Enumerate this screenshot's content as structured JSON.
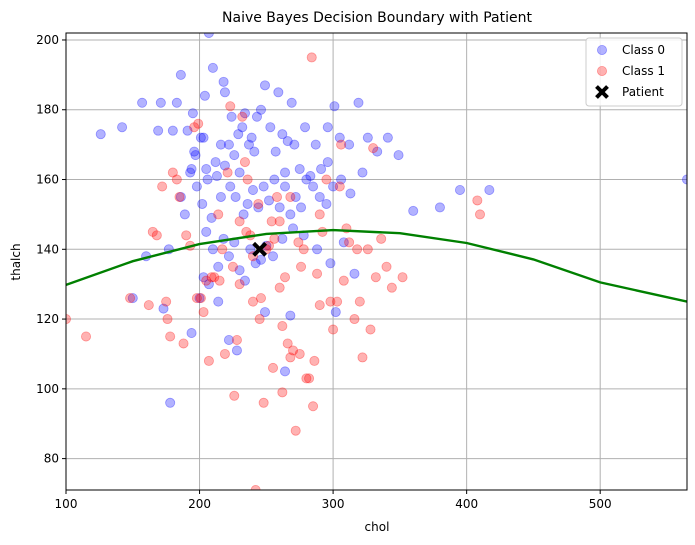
{
  "chart_data": {
    "type": "scatter",
    "title": "Naive Bayes Decision Boundary with Patient",
    "xlabel": "chol",
    "ylabel": "thalch",
    "xlim": [
      100,
      565
    ],
    "ylim": [
      71,
      202
    ],
    "xticks": [
      100,
      200,
      300,
      400,
      500
    ],
    "yticks": [
      80,
      100,
      120,
      140,
      160,
      180,
      200
    ],
    "grid": true,
    "legend_position": "top-right",
    "colors": {
      "class0": "#0000ff",
      "class1": "#ff0000",
      "patient": "#000000",
      "boundary": "#008000"
    },
    "series": [
      {
        "name": "Class 0",
        "points": [
          [
            126,
            173
          ],
          [
            142,
            175
          ],
          [
            157,
            182
          ],
          [
            169,
            174
          ],
          [
            171,
            182
          ],
          [
            180,
            174
          ],
          [
            183,
            182
          ],
          [
            186,
            190
          ],
          [
            191,
            174
          ],
          [
            193,
            162
          ],
          [
            195,
            179
          ],
          [
            196,
            168
          ],
          [
            197,
            167
          ],
          [
            201,
            172
          ],
          [
            203,
            172
          ],
          [
            204,
            184
          ],
          [
            205,
            163
          ],
          [
            210,
            192
          ],
          [
            212,
            165
          ],
          [
            216,
            170
          ],
          [
            218,
            188
          ],
          [
            219,
            185
          ],
          [
            222,
            170
          ],
          [
            224,
            178
          ],
          [
            226,
            167
          ],
          [
            229,
            173
          ],
          [
            232,
            175
          ],
          [
            234,
            179
          ],
          [
            237,
            170
          ],
          [
            239,
            172
          ],
          [
            241,
            168
          ],
          [
            243,
            178
          ],
          [
            246,
            180
          ],
          [
            249,
            187
          ],
          [
            253,
            175
          ],
          [
            257,
            168
          ],
          [
            259,
            185
          ],
          [
            262,
            173
          ],
          [
            264,
            162
          ],
          [
            266,
            171
          ],
          [
            269,
            182
          ],
          [
            271,
            170
          ],
          [
            275,
            163
          ],
          [
            279,
            175
          ],
          [
            283,
            161
          ],
          [
            287,
            170
          ],
          [
            291,
            163
          ],
          [
            296,
            175
          ],
          [
            301,
            181
          ],
          [
            305,
            172
          ],
          [
            312,
            170
          ],
          [
            319,
            182
          ],
          [
            326,
            172
          ],
          [
            333,
            168
          ],
          [
            341,
            172
          ],
          [
            349,
            167
          ],
          [
            296,
            165
          ],
          [
            306,
            160
          ],
          [
            313,
            156
          ],
          [
            322,
            162
          ],
          [
            186,
            155
          ],
          [
            189,
            150
          ],
          [
            194,
            163
          ],
          [
            198,
            158
          ],
          [
            202,
            153
          ],
          [
            206,
            160
          ],
          [
            209,
            149
          ],
          [
            213,
            161
          ],
          [
            216,
            155
          ],
          [
            219,
            164
          ],
          [
            223,
            158
          ],
          [
            227,
            155
          ],
          [
            230,
            162
          ],
          [
            233,
            150
          ],
          [
            236,
            153
          ],
          [
            240,
            157
          ],
          [
            244,
            152
          ],
          [
            248,
            158
          ],
          [
            252,
            154
          ],
          [
            256,
            160
          ],
          [
            260,
            152
          ],
          [
            264,
            158
          ],
          [
            268,
            150
          ],
          [
            272,
            155
          ],
          [
            276,
            152
          ],
          [
            280,
            160
          ],
          [
            285,
            158
          ],
          [
            290,
            155
          ],
          [
            295,
            153
          ],
          [
            300,
            158
          ],
          [
            205,
            145
          ],
          [
            210,
            140
          ],
          [
            214,
            135
          ],
          [
            218,
            143
          ],
          [
            222,
            138
          ],
          [
            226,
            142
          ],
          [
            230,
            134
          ],
          [
            234,
            131
          ],
          [
            238,
            140
          ],
          [
            242,
            136
          ],
          [
            246,
            137
          ],
          [
            250,
            141
          ],
          [
            255,
            138
          ],
          [
            262,
            143
          ],
          [
            270,
            146
          ],
          [
            278,
            144
          ],
          [
            288,
            140
          ],
          [
            298,
            136
          ],
          [
            308,
            142
          ],
          [
            316,
            133
          ],
          [
            150,
            126
          ],
          [
            173,
            123
          ],
          [
            178,
            96
          ],
          [
            194,
            116
          ],
          [
            200,
            126
          ],
          [
            203,
            132
          ],
          [
            207,
            130
          ],
          [
            214,
            125
          ],
          [
            222,
            114
          ],
          [
            228,
            111
          ],
          [
            249,
            122
          ],
          [
            264,
            105
          ],
          [
            268,
            121
          ],
          [
            302,
            122
          ],
          [
            160,
            138
          ],
          [
            177,
            140
          ],
          [
            360,
            151
          ],
          [
            380,
            152
          ],
          [
            395,
            157
          ],
          [
            417,
            157
          ],
          [
            565,
            160
          ],
          [
            207,
            202
          ]
        ]
      },
      {
        "name": "Class 1",
        "points": [
          [
            100,
            120
          ],
          [
            115,
            115
          ],
          [
            148,
            126
          ],
          [
            162,
            124
          ],
          [
            165,
            145
          ],
          [
            168,
            144
          ],
          [
            172,
            158
          ],
          [
            175,
            125
          ],
          [
            176,
            120
          ],
          [
            178,
            115
          ],
          [
            180,
            162
          ],
          [
            183,
            160
          ],
          [
            185,
            155
          ],
          [
            188,
            113
          ],
          [
            190,
            144
          ],
          [
            193,
            141
          ],
          [
            196,
            175
          ],
          [
            199,
            176
          ],
          [
            201,
            126
          ],
          [
            203,
            122
          ],
          [
            205,
            131
          ],
          [
            207,
            108
          ],
          [
            209,
            132
          ],
          [
            211,
            132
          ],
          [
            214,
            150
          ],
          [
            217,
            140
          ],
          [
            219,
            110
          ],
          [
            221,
            162
          ],
          [
            223,
            181
          ],
          [
            226,
            98
          ],
          [
            228,
            114
          ],
          [
            230,
            130
          ],
          [
            232,
            178
          ],
          [
            234,
            165
          ],
          [
            236,
            160
          ],
          [
            238,
            144
          ],
          [
            240,
            125
          ],
          [
            242,
            71
          ],
          [
            244,
            153
          ],
          [
            246,
            126
          ],
          [
            248,
            96
          ],
          [
            250,
            140
          ],
          [
            252,
            141
          ],
          [
            254,
            148
          ],
          [
            256,
            143
          ],
          [
            258,
            155
          ],
          [
            260,
            129
          ],
          [
            262,
            118
          ],
          [
            264,
            132
          ],
          [
            266,
            113
          ],
          [
            268,
            109
          ],
          [
            270,
            111
          ],
          [
            272,
            88
          ],
          [
            274,
            142
          ],
          [
            276,
            135
          ],
          [
            278,
            140
          ],
          [
            280,
            103
          ],
          [
            282,
            103
          ],
          [
            284,
            195
          ],
          [
            286,
            108
          ],
          [
            288,
            133
          ],
          [
            290,
            124
          ],
          [
            292,
            145
          ],
          [
            295,
            160
          ],
          [
            298,
            125
          ],
          [
            300,
            117
          ],
          [
            303,
            125
          ],
          [
            306,
            170
          ],
          [
            308,
            131
          ],
          [
            310,
            146
          ],
          [
            312,
            142
          ],
          [
            316,
            120
          ],
          [
            320,
            125
          ],
          [
            322,
            109
          ],
          [
            326,
            140
          ],
          [
            328,
            117
          ],
          [
            332,
            132
          ],
          [
            336,
            143
          ],
          [
            340,
            135
          ],
          [
            344,
            129
          ],
          [
            352,
            132
          ],
          [
            408,
            154
          ],
          [
            410,
            150
          ],
          [
            245,
            120
          ],
          [
            255,
            106
          ],
          [
            262,
            99
          ],
          [
            275,
            110
          ],
          [
            285,
            95
          ],
          [
            240,
            138
          ],
          [
            235,
            145
          ],
          [
            230,
            148
          ],
          [
            225,
            135
          ],
          [
            215,
            131
          ],
          [
            198,
            126
          ],
          [
            260,
            148
          ],
          [
            268,
            155
          ],
          [
            290,
            150
          ],
          [
            305,
            158
          ],
          [
            318,
            140
          ],
          [
            330,
            169
          ]
        ]
      }
    ],
    "patient": {
      "name": "Patient",
      "x": 245,
      "y": 140
    },
    "boundary": {
      "name": "",
      "x": [
        100,
        150,
        200,
        250,
        300,
        350,
        400,
        450,
        500,
        565
      ],
      "y": [
        129.8,
        136.6,
        141.5,
        144.4,
        145.5,
        144.6,
        141.8,
        137.1,
        130.5,
        125.0
      ]
    }
  }
}
